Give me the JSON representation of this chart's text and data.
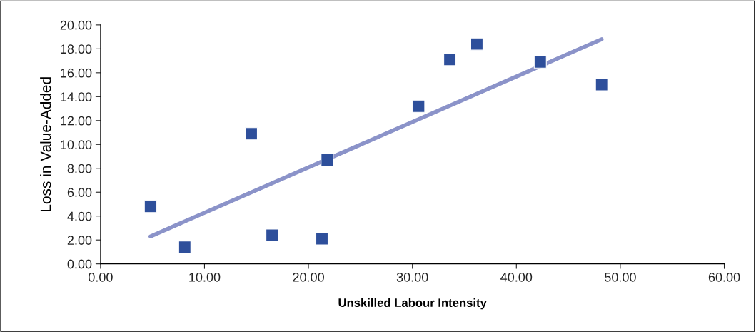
{
  "chart_data": {
    "type": "scatter",
    "xlabel": "Unskilled Labour Intensity",
    "ylabel": "Loss in Value-Added",
    "marker": "square",
    "grid": false,
    "legend": false,
    "xlim": [
      0,
      60
    ],
    "ylim": [
      0,
      20
    ],
    "xticks": [
      {
        "value": 0,
        "label": "0.00"
      },
      {
        "value": 10,
        "label": "10.00"
      },
      {
        "value": 20,
        "label": "20.00"
      },
      {
        "value": 30,
        "label": "30.00"
      },
      {
        "value": 40,
        "label": "40.00"
      },
      {
        "value": 50,
        "label": "50.00"
      },
      {
        "value": 60,
        "label": "60.00"
      }
    ],
    "yticks": [
      {
        "value": 0,
        "label": "0.00"
      },
      {
        "value": 2,
        "label": "2.00"
      },
      {
        "value": 4,
        "label": "4.00"
      },
      {
        "value": 6,
        "label": "6.00"
      },
      {
        "value": 8,
        "label": "8.00"
      },
      {
        "value": 10,
        "label": "10.00"
      },
      {
        "value": 12,
        "label": "12.00"
      },
      {
        "value": 14,
        "label": "14.00"
      },
      {
        "value": 16,
        "label": "16.00"
      },
      {
        "value": 18,
        "label": "18.00"
      },
      {
        "value": 20,
        "label": "20.00"
      }
    ],
    "series": [
      {
        "color": "#2e4f9b",
        "x": [
          4.8,
          8.1,
          14.5,
          16.5,
          21.3,
          21.8,
          30.6,
          33.6,
          36.2,
          42.3,
          48.2
        ],
        "values": [
          4.8,
          1.4,
          10.9,
          2.4,
          2.1,
          8.7,
          13.2,
          17.1,
          18.4,
          16.9,
          15.0
        ]
      },
      {
        "type": "line",
        "color": "#8b93c9",
        "marker": "none",
        "x": [
          4.8,
          48.2
        ],
        "values": [
          2.3,
          18.8
        ]
      }
    ]
  }
}
